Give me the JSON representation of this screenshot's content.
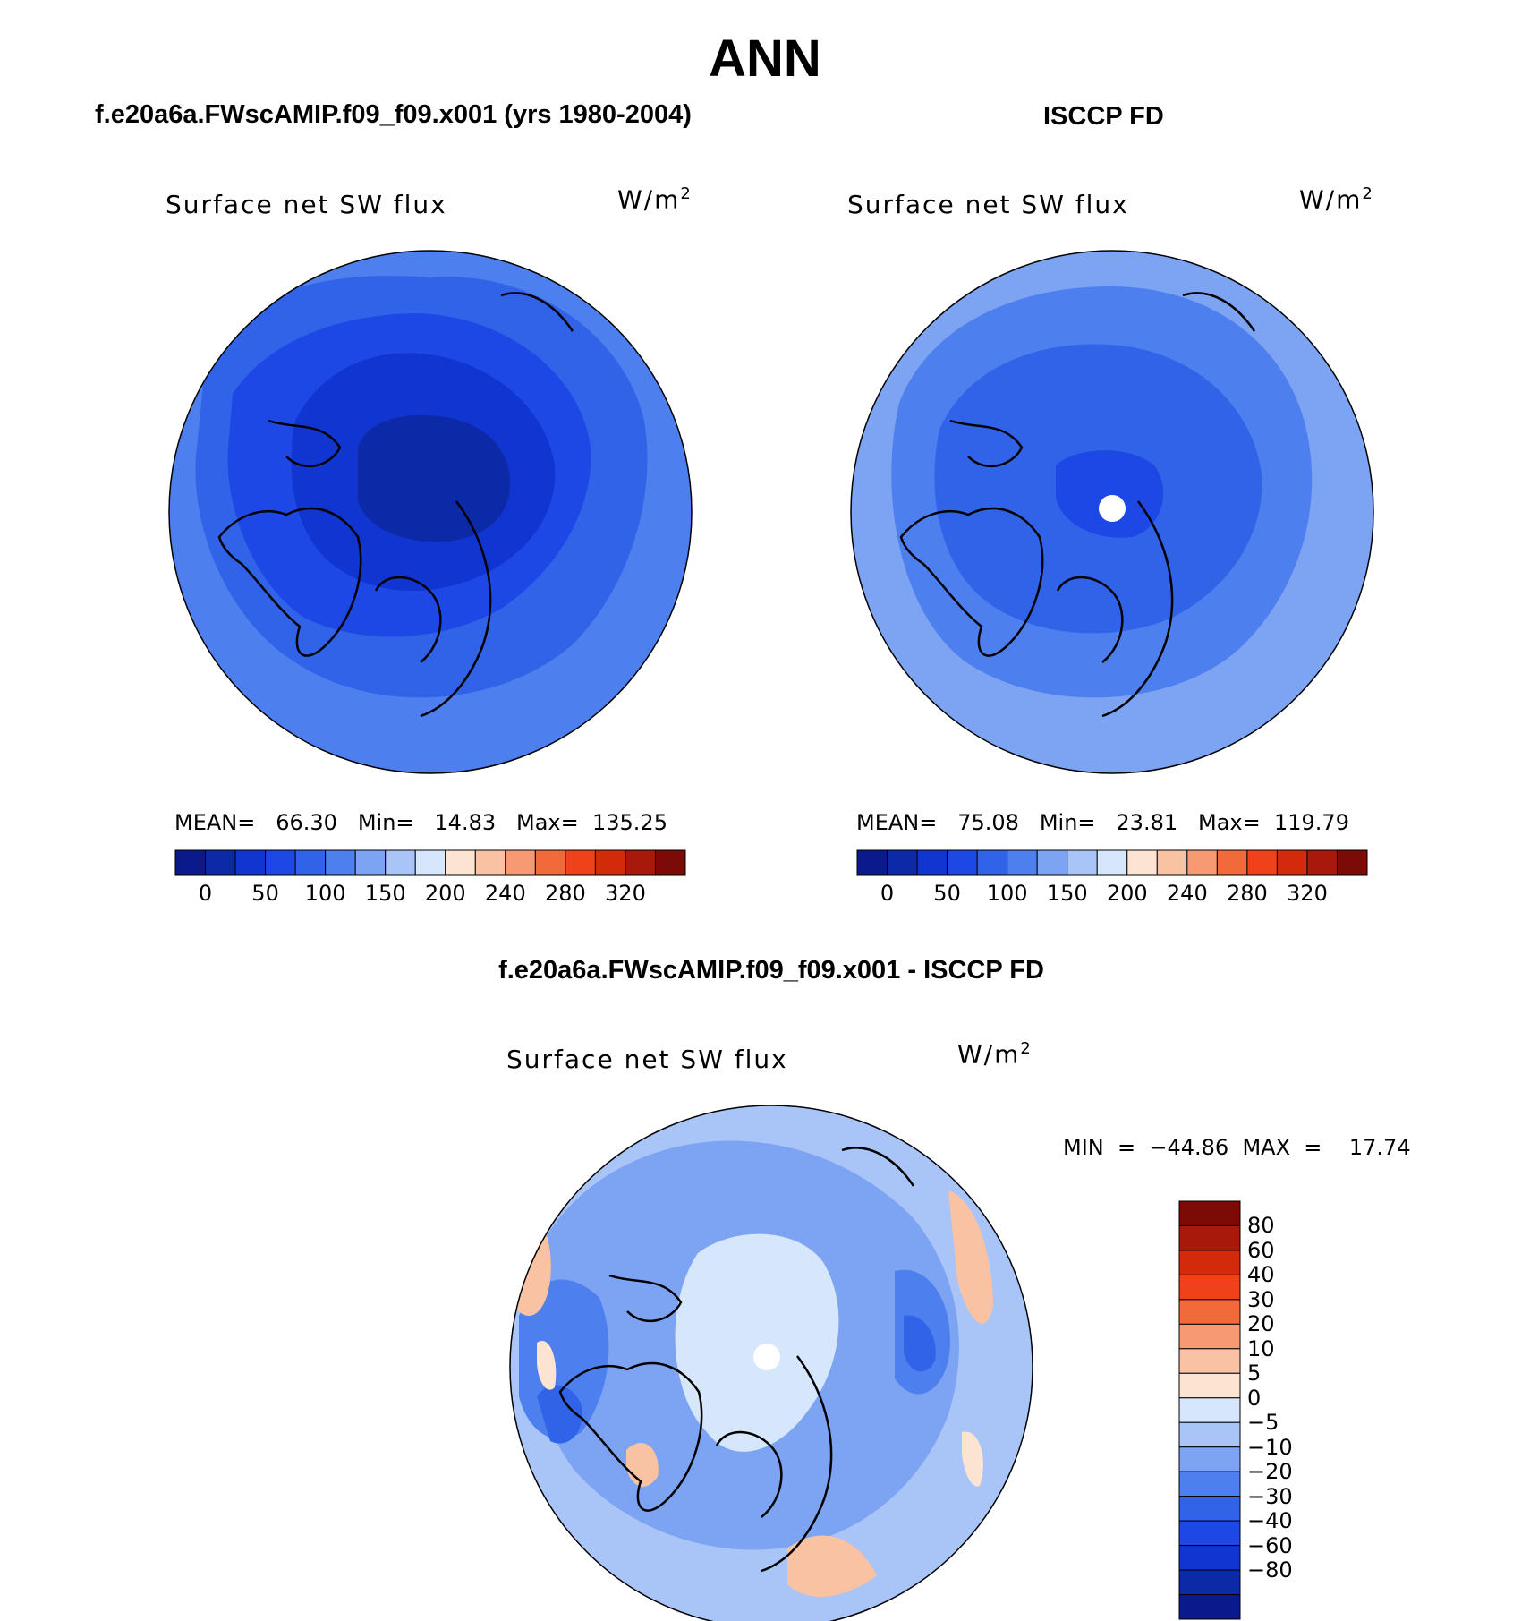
{
  "figure": {
    "title": "ANN"
  },
  "panels": {
    "model": {
      "heading": "f.e20a6a.FWscAMIP.f09_f09.x001 (yrs 1980-2004)",
      "variable": "Surface net SW flux",
      "unit_base": "W/m",
      "unit_exp": "2",
      "stats": "MEAN=   66.30   Min=   14.83   Max=  135.25"
    },
    "obs": {
      "heading": "ISCCP FD",
      "variable": "Surface net SW flux",
      "unit_base": "W/m",
      "unit_exp": "2",
      "stats": "MEAN=   75.08   Min=   23.81   Max=  119.79"
    },
    "diff": {
      "heading": "f.e20a6a.FWscAMIP.f09_f09.x001 - ISCCP FD",
      "variable": "Surface net SW flux",
      "unit_base": "W/m",
      "unit_exp": "2",
      "minmax": "MIN  =  −44.86  MAX  =    17.74"
    }
  },
  "colorbars": {
    "absolute": {
      "colors": [
        "#0a1a8c",
        "#0c2aa8",
        "#1035d0",
        "#1d48e6",
        "#3063e8",
        "#4d7fee",
        "#7da3f3",
        "#a9c4f7",
        "#d6e6fb",
        "#fde4d2",
        "#f9c2a3",
        "#f59a73",
        "#f26a3a",
        "#f0421a",
        "#d42a0c",
        "#a8190a",
        "#7c0a06"
      ],
      "ticks": [
        "0",
        "50",
        "100",
        "150",
        "200",
        "240",
        "280",
        "320"
      ]
    },
    "difference": {
      "colors": [
        "#7c0a06",
        "#a8190a",
        "#d42a0c",
        "#f0421a",
        "#f26a3a",
        "#f59a73",
        "#f9c2a3",
        "#fde4d2",
        "#d6e6fb",
        "#a9c4f7",
        "#7da3f3",
        "#4d7fee",
        "#3063e8",
        "#1d48e6",
        "#1035d0",
        "#0c2aa8",
        "#0a1a8c"
      ],
      "ticks": [
        "80",
        "60",
        "40",
        "30",
        "20",
        "10",
        "5",
        "0",
        "−5",
        "−10",
        "−20",
        "−30",
        "−40",
        "−60",
        "−80"
      ]
    }
  },
  "map_colors": {
    "model": {
      "outer": "#4d7fee",
      "mid": "#3063e8",
      "inner": "#1d48e6",
      "core": "#1035d0",
      "deep": "#0c2aa8"
    },
    "obs": {
      "outer": "#7da3f3",
      "mid": "#4d7fee",
      "inner": "#3063e8",
      "core": "#1d48e6",
      "pole": "#ffffff"
    },
    "diff": {
      "base": "#a9c4f7",
      "light": "#d6e6fb",
      "mid": "#7da3f3",
      "dark": "#4d7fee",
      "strong": "#3063e8",
      "warm": "#f9c2a3",
      "warm2": "#fde4d2",
      "pole": "#ffffff"
    }
  }
}
